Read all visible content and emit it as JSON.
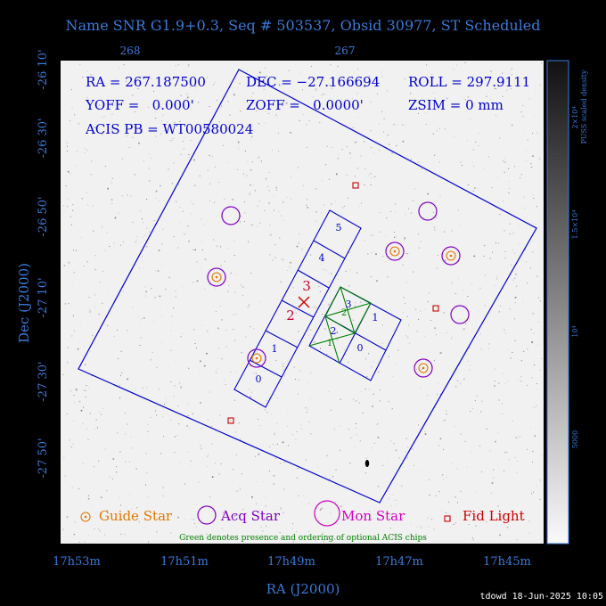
{
  "header": {
    "title": "Name SNR G1.9+0.3, Seq # 503537, Obsid 30977, ST Scheduled"
  },
  "colors": {
    "axis": "#3a7ad8",
    "field": "#0000cc",
    "guide": "#e07800",
    "acq": "#8000c0",
    "mon": "#d000c0",
    "fid": "#cc0000",
    "chips": "#008000",
    "label": "#cc0033"
  },
  "top_axis": {
    "ticks": [
      "268",
      "267"
    ]
  },
  "left_axis": {
    "label": "Dec (J2000)",
    "ticks": [
      "-26 10'",
      "-26 30'",
      "-26 50'",
      "-27 10'",
      "-27 30'",
      "-27 50'"
    ]
  },
  "bottom_axis": {
    "label": "RA (J2000)",
    "ticks": [
      "17h53m",
      "17h51m",
      "17h49m",
      "17h47m",
      "17h45m"
    ]
  },
  "info": {
    "ra": "RA = 267.187500",
    "dec": "DEC = −27.166694",
    "roll": "ROLL = 297.9111",
    "yoff": "YOFF =   0.000'",
    "zoff": "ZOFF =   0.0000'",
    "zsim": "ZSIM = 0 mm",
    "acis_pb": "ACIS PB = WT00580024"
  },
  "chips": {
    "s_array": [
      "0",
      "1",
      "2",
      "3",
      "4",
      "5"
    ],
    "i_array": [
      "0",
      "1",
      "2",
      "3"
    ],
    "green_labels": [
      "1",
      "2"
    ]
  },
  "legend": {
    "guide": "Guide Star",
    "acq": "Acq Star",
    "mon": "Mon Star",
    "fid": "Fid Light",
    "note": "Green denotes presence and ordering of optional ACIS chips"
  },
  "colorbar": {
    "title": "PUSS scaled density",
    "ticks": [
      "2×10⁴",
      "1.5×10⁴",
      "10⁴",
      "5000"
    ]
  },
  "footer": {
    "stamp": "tdowd 18-Jun-2025 10:05"
  }
}
